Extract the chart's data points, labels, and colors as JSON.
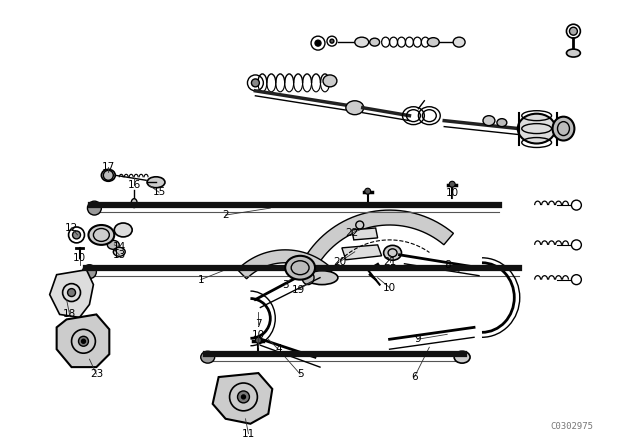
{
  "bg_color": "#ffffff",
  "line_color": "#000000",
  "watermark": "C0302975",
  "figsize": [
    6.4,
    4.48
  ],
  "dpi": 100
}
